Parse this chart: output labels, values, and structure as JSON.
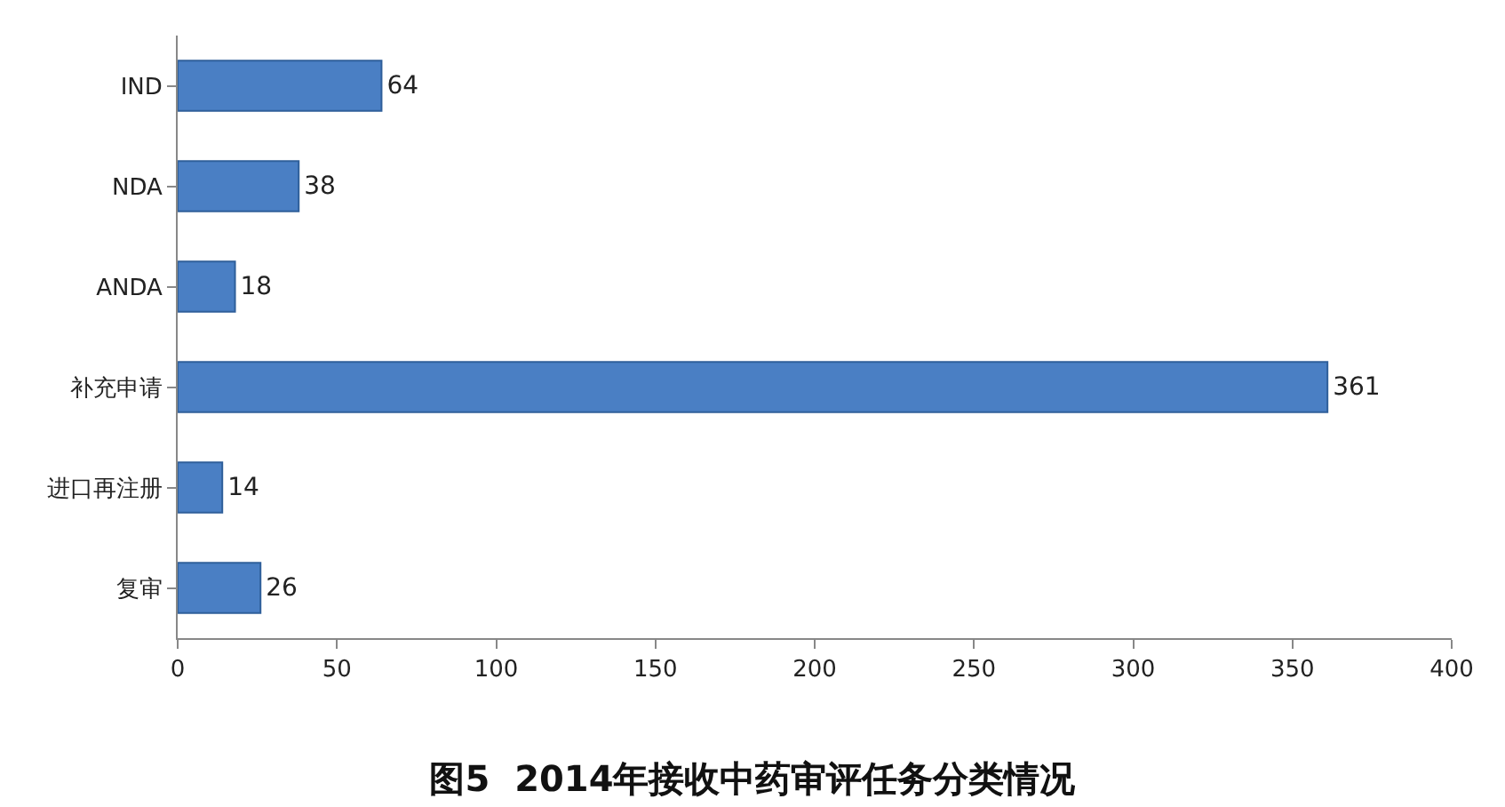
{
  "chart_data": {
    "type": "bar",
    "orientation": "horizontal",
    "title": "图5  2014年接收中药审评任务分类情况",
    "categories": [
      "IND",
      "NDA",
      "ANDA",
      "补充申请",
      "进口再注册",
      "复审"
    ],
    "values": [
      64,
      38,
      18,
      361,
      14,
      26
    ],
    "color": "#4a7fc4",
    "xlim": [
      0,
      400
    ],
    "xticks": [
      0,
      50,
      100,
      150,
      200,
      250,
      300,
      350,
      400
    ],
    "data_labels": true
  }
}
